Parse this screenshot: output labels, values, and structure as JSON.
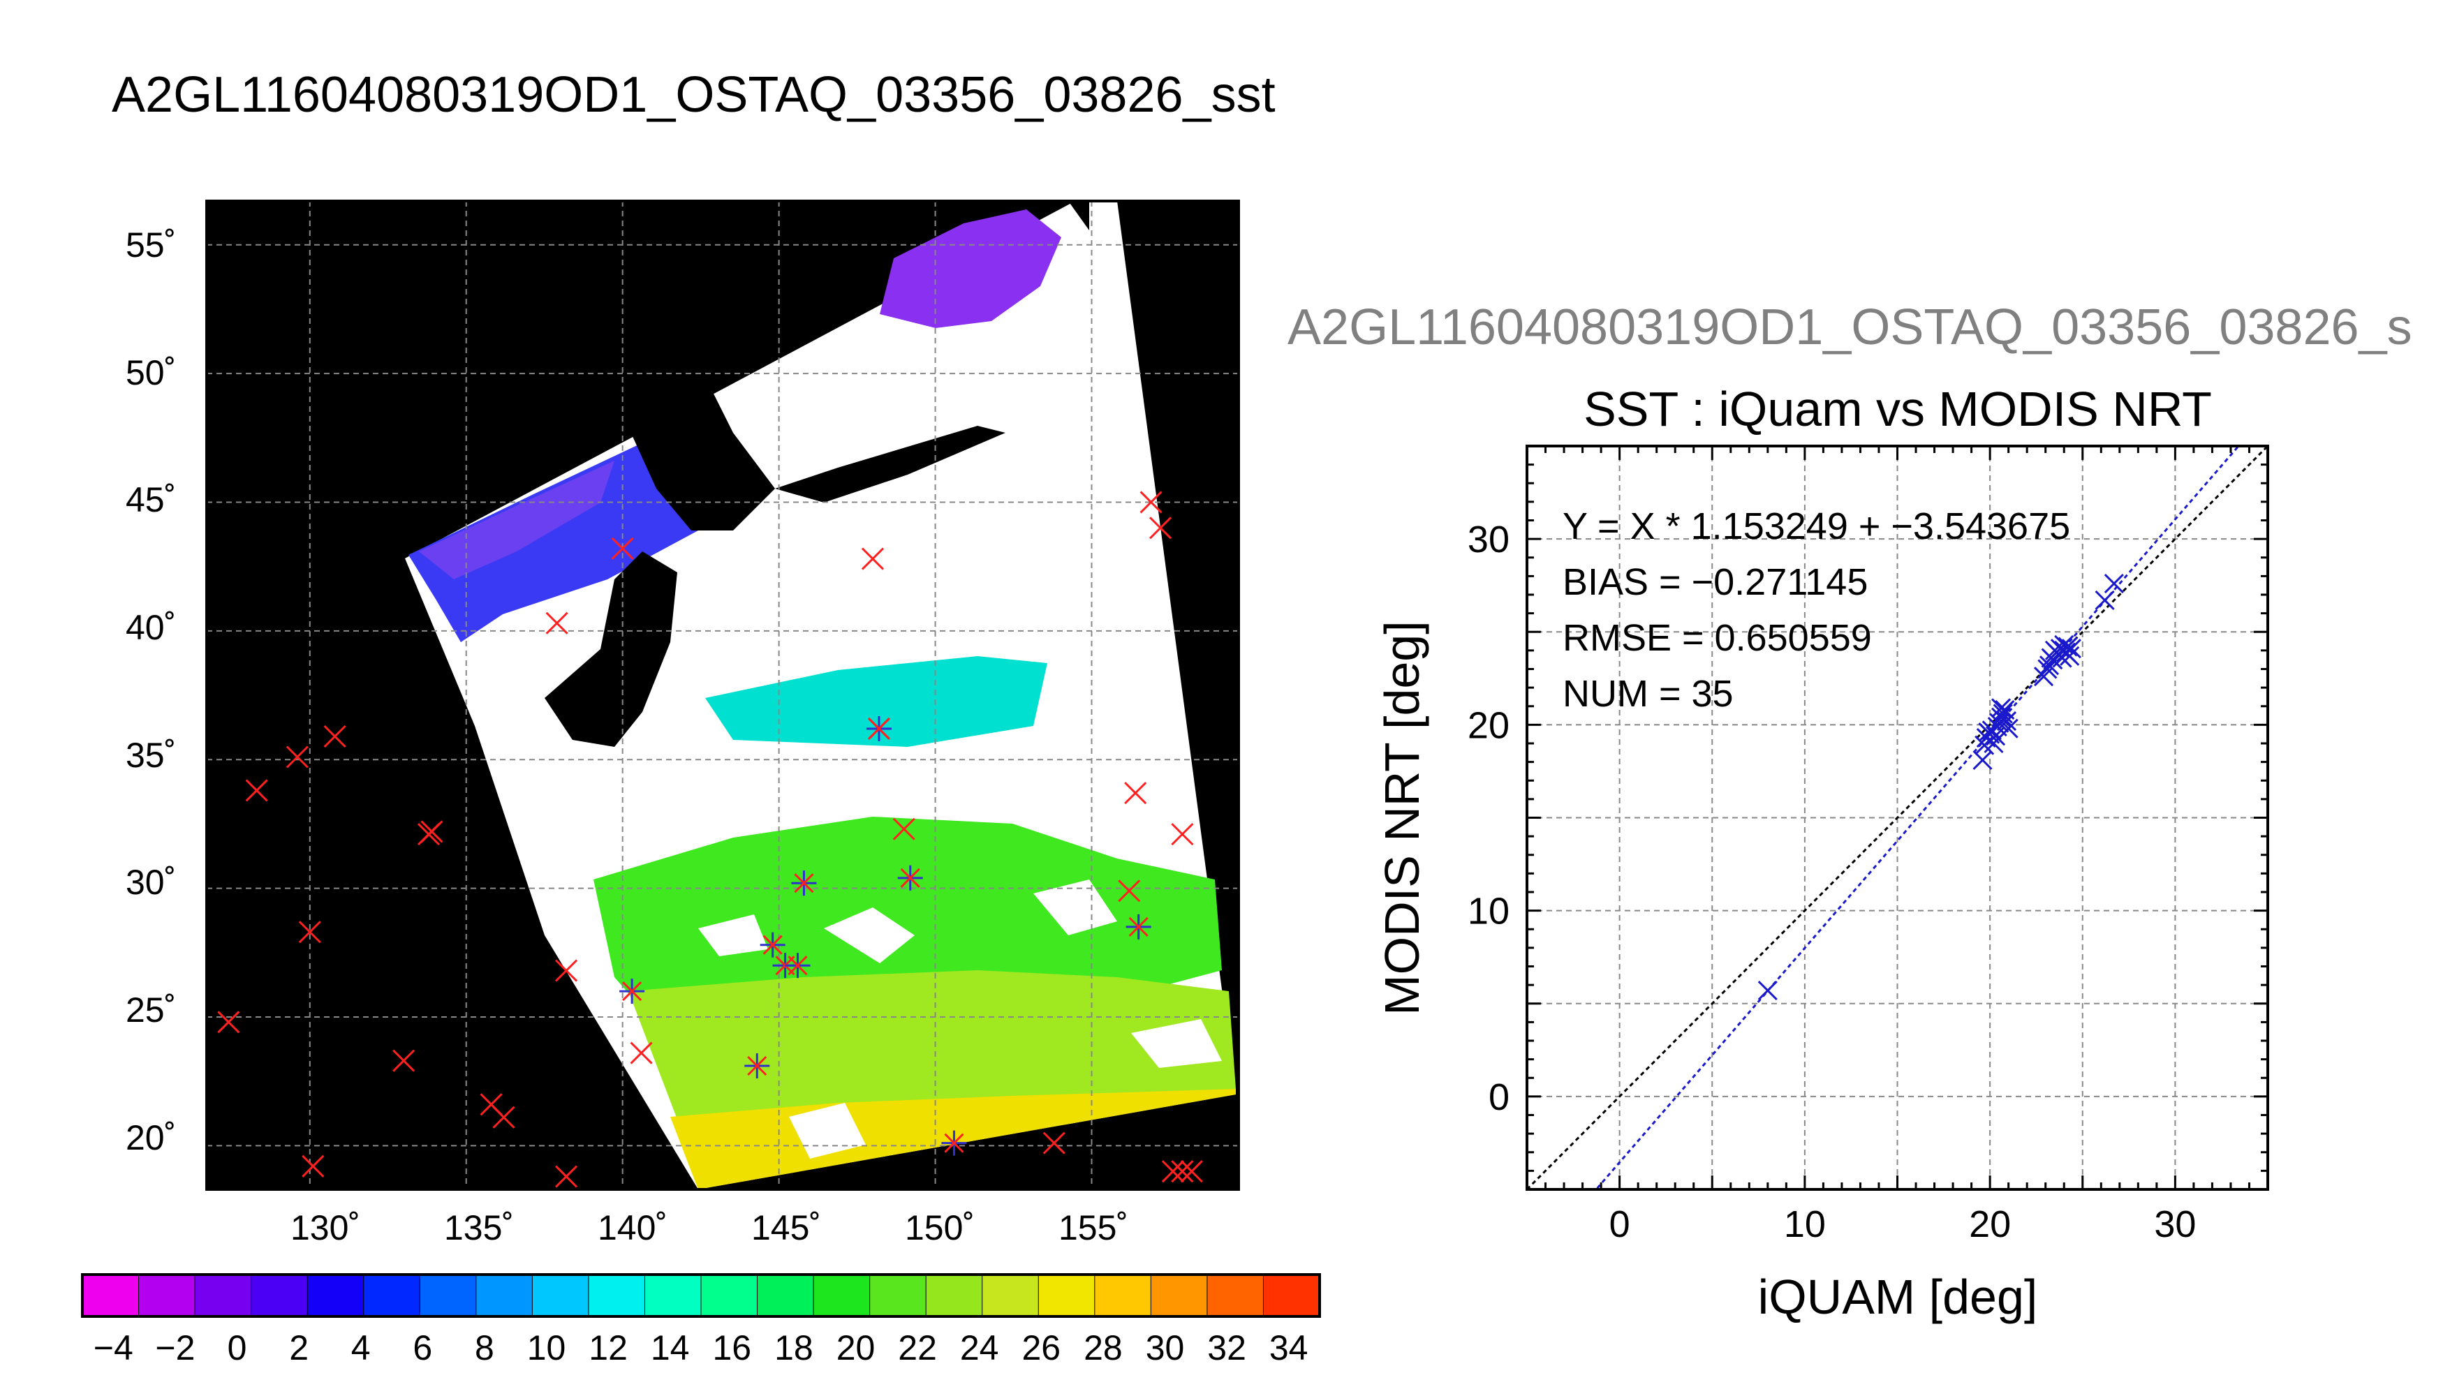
{
  "map_panel": {
    "title": "A2GL11604080319OD1_OSTAQ_03356_03826_sst",
    "lat_tick_labels": [
      "55˚",
      "50˚",
      "45˚",
      "40˚",
      "35˚",
      "30˚",
      "25˚",
      "20˚"
    ],
    "lon_tick_labels": [
      "130˚",
      "135˚",
      "140˚",
      "145˚",
      "150˚",
      "155˚"
    ],
    "colorbar_tick_labels": [
      "−4",
      "−2",
      "0",
      "2",
      "4",
      "6",
      "8",
      "10",
      "12",
      "14",
      "16",
      "18",
      "20",
      "22",
      "24",
      "26",
      "28",
      "30",
      "32",
      "34"
    ],
    "colorbar_range": [
      -5,
      35
    ],
    "colors": {
      "background": "#000000",
      "cloud": "#ffffff",
      "land": "#000000",
      "marker_red": "#ff2020",
      "marker_blue": "#3030cc"
    }
  },
  "scatter_panel": {
    "title_clipped": "A2GL11604080319OD1_OSTAQ_03356_03826_s",
    "annotations": {
      "regression": "Y = X * 1.153249 + −3.543675",
      "bias": "BIAS = −0.271145",
      "rmse": "RMSE = 0.650559",
      "num": "NUM = 35"
    }
  },
  "chart_data": [
    {
      "type": "scatter",
      "title": "SST : iQuam vs MODIS NRT",
      "xlabel": "iQUAM [deg]",
      "ylabel": "MODIS NRT [deg]",
      "xlim": [
        -5,
        35
      ],
      "ylim": [
        -5,
        35
      ],
      "x_ticks": [
        0,
        10,
        20,
        30
      ],
      "y_ticks": [
        0,
        10,
        20,
        30
      ],
      "grid": true,
      "series": [
        {
          "marker": "x",
          "color": "#1a1acc",
          "points": [
            [
              8.0,
              5.7
            ],
            [
              19.6,
              18.1
            ],
            [
              19.8,
              19.3
            ],
            [
              20.0,
              19.5
            ],
            [
              20.2,
              19.0
            ],
            [
              20.4,
              19.9
            ],
            [
              20.6,
              20.4
            ],
            [
              20.8,
              20.8
            ],
            [
              20.9,
              20.2
            ],
            [
              21.0,
              19.8
            ],
            [
              22.9,
              22.6
            ],
            [
              23.1,
              23.0
            ],
            [
              23.3,
              23.6
            ],
            [
              23.5,
              24.0
            ],
            [
              23.7,
              23.8
            ],
            [
              23.8,
              24.1
            ],
            [
              24.0,
              24.3
            ],
            [
              24.1,
              23.9
            ],
            [
              24.2,
              24.2
            ],
            [
              24.3,
              23.7
            ],
            [
              26.2,
              26.7
            ],
            [
              26.7,
              27.6
            ],
            [
              19.9,
              19.6
            ],
            [
              20.7,
              20.6
            ],
            [
              23.4,
              23.5
            ],
            [
              23.9,
              23.6
            ],
            [
              24.0,
              24.0
            ],
            [
              20.3,
              19.4
            ],
            [
              20.5,
              20.1
            ],
            [
              23.6,
              23.9
            ],
            [
              24.4,
              24.1
            ],
            [
              19.7,
              18.9
            ],
            [
              20.1,
              19.7
            ],
            [
              23.2,
              23.2
            ],
            [
              20.6,
              20.9
            ]
          ]
        }
      ],
      "lines": [
        {
          "kind": "regression",
          "slope": 1.153249,
          "intercept": -3.543675,
          "color": "#1a1acc",
          "style": "dotted"
        },
        {
          "kind": "one_to_one",
          "slope": 1,
          "intercept": 0,
          "color": "#000000",
          "style": "dotted"
        }
      ]
    },
    {
      "type": "map",
      "lon_range": [
        126.7,
        159.7
      ],
      "lat_range": [
        18.3,
        56.7
      ],
      "grid_lons": [
        130,
        135,
        140,
        145,
        150,
        155
      ],
      "grid_lats": [
        20,
        25,
        30,
        35,
        40,
        45,
        50,
        55
      ],
      "buoys_red": [
        [
          128.3,
          33.8
        ],
        [
          129.6,
          35.1
        ],
        [
          130.8,
          35.9
        ],
        [
          127.4,
          24.8
        ],
        [
          130.0,
          28.3
        ],
        [
          133.8,
          32.1
        ],
        [
          133.9,
          32.2
        ],
        [
          133.0,
          23.3
        ],
        [
          135.8,
          21.6
        ],
        [
          136.2,
          21.1
        ],
        [
          138.2,
          26.8
        ],
        [
          138.2,
          18.8
        ],
        [
          130.1,
          19.2
        ],
        [
          137.9,
          40.3
        ],
        [
          140.0,
          43.2
        ],
        [
          140.6,
          23.6
        ],
        [
          148.0,
          42.8
        ],
        [
          149.0,
          32.3
        ],
        [
          153.8,
          20.1
        ],
        [
          156.2,
          29.9
        ],
        [
          156.4,
          33.7
        ],
        [
          156.9,
          45.0
        ],
        [
          157.2,
          44.0
        ],
        [
          157.9,
          32.1
        ],
        [
          157.6,
          19.0
        ],
        [
          157.9,
          19.0
        ],
        [
          158.2,
          19.0
        ],
        [
          148.2,
          36.2
        ]
      ],
      "buoys_star": [
        [
          148.2,
          36.2
        ],
        [
          145.8,
          30.2
        ],
        [
          149.2,
          30.4
        ],
        [
          140.3,
          26.0
        ],
        [
          144.8,
          27.8
        ],
        [
          145.2,
          27.0
        ],
        [
          145.6,
          27.0
        ],
        [
          144.3,
          23.1
        ],
        [
          150.6,
          20.1
        ],
        [
          156.5,
          28.5
        ]
      ]
    }
  ]
}
